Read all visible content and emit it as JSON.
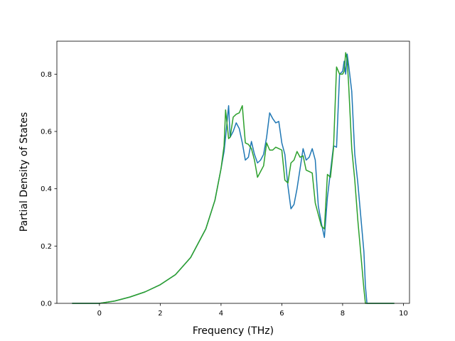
{
  "chart_data": {
    "type": "line",
    "title": "",
    "xlabel": "Frequency (THz)",
    "ylabel": "Partial Density of States",
    "xlim": [
      -1.4,
      10.2
    ],
    "ylim": [
      0.0,
      0.915
    ],
    "xticks": [
      0,
      2,
      4,
      6,
      8,
      10
    ],
    "yticks": [
      0.0,
      0.2,
      0.4,
      0.6,
      0.8
    ],
    "xtick_labels": [
      "0",
      "2",
      "4",
      "6",
      "8",
      "10"
    ],
    "ytick_labels": [
      "0.0",
      "0.2",
      "0.4",
      "0.6",
      "0.8"
    ],
    "grid": false,
    "legend": "none",
    "series": [
      {
        "color": "#1f77b4",
        "x": [
          -0.9,
          0.0,
          0.5,
          1.0,
          1.5,
          2.0,
          2.5,
          3.0,
          3.5,
          3.8,
          4.0,
          4.1,
          4.15,
          4.25,
          4.3,
          4.4,
          4.5,
          4.6,
          4.7,
          4.8,
          4.9,
          5.0,
          5.1,
          5.2,
          5.3,
          5.4,
          5.5,
          5.6,
          5.7,
          5.8,
          5.9,
          6.0,
          6.1,
          6.2,
          6.3,
          6.4,
          6.5,
          6.6,
          6.7,
          6.8,
          6.9,
          7.0,
          7.1,
          7.2,
          7.3,
          7.4,
          7.5,
          7.6,
          7.7,
          7.8,
          7.9,
          8.0,
          8.05,
          8.1,
          8.15,
          8.2,
          8.3,
          8.4,
          8.5,
          8.6,
          8.7,
          8.75,
          8.8,
          8.9,
          9.7
        ],
        "y": [
          0.0,
          0.0,
          0.008,
          0.022,
          0.04,
          0.065,
          0.1,
          0.16,
          0.26,
          0.36,
          0.47,
          0.53,
          0.58,
          0.69,
          0.58,
          0.6,
          0.63,
          0.61,
          0.56,
          0.5,
          0.51,
          0.565,
          0.52,
          0.49,
          0.5,
          0.52,
          0.58,
          0.665,
          0.645,
          0.63,
          0.635,
          0.56,
          0.52,
          0.41,
          0.33,
          0.345,
          0.4,
          0.47,
          0.54,
          0.5,
          0.51,
          0.54,
          0.5,
          0.34,
          0.28,
          0.23,
          0.37,
          0.46,
          0.55,
          0.545,
          0.8,
          0.81,
          0.845,
          0.8,
          0.87,
          0.83,
          0.74,
          0.52,
          0.42,
          0.3,
          0.18,
          0.06,
          0.0,
          0.0,
          0.0
        ]
      },
      {
        "color": "#2ca02c",
        "x": [
          -0.9,
          0.0,
          0.5,
          1.0,
          1.5,
          2.0,
          2.5,
          3.0,
          3.5,
          3.8,
          4.0,
          4.1,
          4.15,
          4.25,
          4.3,
          4.4,
          4.5,
          4.6,
          4.7,
          4.8,
          4.9,
          5.0,
          5.1,
          5.2,
          5.3,
          5.4,
          5.5,
          5.6,
          5.7,
          5.8,
          5.9,
          6.0,
          6.1,
          6.2,
          6.3,
          6.4,
          6.5,
          6.6,
          6.7,
          6.8,
          6.9,
          7.0,
          7.1,
          7.2,
          7.3,
          7.4,
          7.5,
          7.6,
          7.7,
          7.8,
          7.9,
          8.0,
          8.05,
          8.1,
          8.15,
          8.2,
          8.3,
          8.4,
          8.5,
          8.6,
          8.7,
          8.75,
          8.8,
          8.9,
          9.7
        ],
        "y": [
          0.0,
          0.0,
          0.008,
          0.022,
          0.04,
          0.065,
          0.1,
          0.16,
          0.26,
          0.36,
          0.47,
          0.55,
          0.675,
          0.575,
          0.58,
          0.65,
          0.66,
          0.665,
          0.69,
          0.56,
          0.555,
          0.54,
          0.5,
          0.44,
          0.46,
          0.48,
          0.56,
          0.535,
          0.535,
          0.545,
          0.54,
          0.535,
          0.43,
          0.42,
          0.49,
          0.5,
          0.53,
          0.51,
          0.515,
          0.465,
          0.46,
          0.455,
          0.35,
          0.31,
          0.27,
          0.26,
          0.45,
          0.44,
          0.54,
          0.825,
          0.8,
          0.8,
          0.81,
          0.875,
          0.85,
          0.76,
          0.54,
          0.43,
          0.29,
          0.17,
          0.05,
          0.0,
          0.0,
          0.0,
          0.0
        ]
      }
    ]
  }
}
